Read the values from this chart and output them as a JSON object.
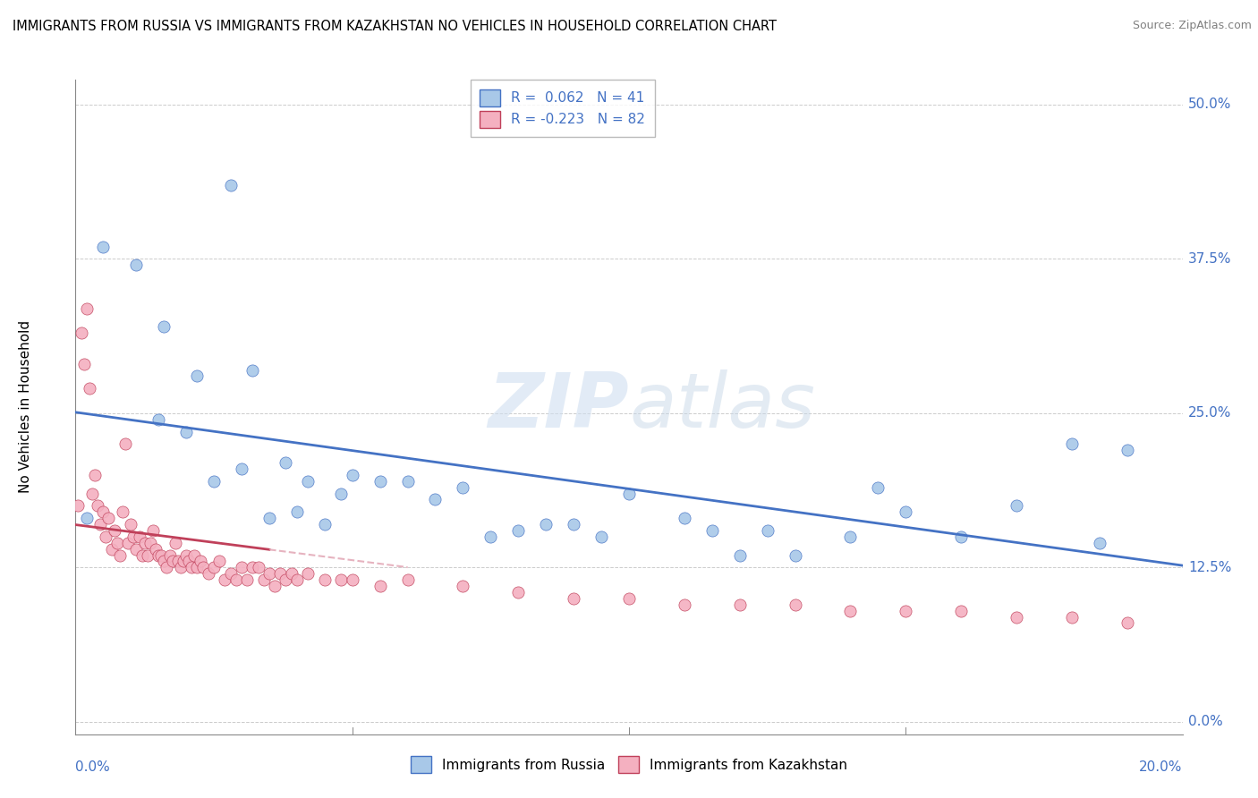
{
  "title": "IMMIGRANTS FROM RUSSIA VS IMMIGRANTS FROM KAZAKHSTAN NO VEHICLES IN HOUSEHOLD CORRELATION CHART",
  "source": "Source: ZipAtlas.com",
  "ylabel": "No Vehicles in Household",
  "ytick_vals": [
    0.0,
    12.5,
    25.0,
    37.5,
    50.0
  ],
  "xlim": [
    0.0,
    20.0
  ],
  "ylim": [
    -1.0,
    52.0
  ],
  "legend_r_russia": "0.062",
  "legend_n_russia": "41",
  "legend_r_kazakhstan": "-0.223",
  "legend_n_kazakhstan": "82",
  "color_russia": "#a8c8e8",
  "color_kazakhstan": "#f4b0c0",
  "line_russia": "#4472c4",
  "line_kazakhstan": "#c0405a",
  "background_color": "#ffffff",
  "russia_x": [
    0.2,
    0.5,
    1.1,
    1.5,
    1.6,
    2.0,
    2.2,
    2.5,
    2.8,
    3.0,
    3.2,
    3.5,
    3.8,
    4.0,
    4.2,
    4.5,
    4.8,
    5.0,
    5.5,
    6.0,
    6.5,
    7.0,
    7.5,
    8.0,
    8.5,
    9.0,
    9.5,
    10.0,
    11.0,
    11.5,
    12.0,
    12.5,
    13.0,
    14.0,
    14.5,
    15.0,
    16.0,
    17.0,
    18.0,
    18.5,
    19.0
  ],
  "russia_y": [
    16.5,
    38.5,
    37.0,
    24.5,
    32.0,
    23.5,
    28.0,
    19.5,
    43.5,
    20.5,
    28.5,
    16.5,
    21.0,
    17.0,
    19.5,
    16.0,
    18.5,
    20.0,
    19.5,
    19.5,
    18.0,
    19.0,
    15.0,
    15.5,
    16.0,
    16.0,
    15.0,
    18.5,
    16.5,
    15.5,
    13.5,
    15.5,
    13.5,
    15.0,
    19.0,
    17.0,
    15.0,
    17.5,
    22.5,
    14.5,
    22.0
  ],
  "kazakhstan_x": [
    0.05,
    0.1,
    0.15,
    0.2,
    0.25,
    0.3,
    0.35,
    0.4,
    0.45,
    0.5,
    0.55,
    0.6,
    0.65,
    0.7,
    0.75,
    0.8,
    0.85,
    0.9,
    0.95,
    1.0,
    1.05,
    1.1,
    1.15,
    1.2,
    1.25,
    1.3,
    1.35,
    1.4,
    1.45,
    1.5,
    1.55,
    1.6,
    1.65,
    1.7,
    1.75,
    1.8,
    1.85,
    1.9,
    1.95,
    2.0,
    2.05,
    2.1,
    2.15,
    2.2,
    2.25,
    2.3,
    2.4,
    2.5,
    2.6,
    2.7,
    2.8,
    2.9,
    3.0,
    3.1,
    3.2,
    3.3,
    3.4,
    3.5,
    3.6,
    3.7,
    3.8,
    3.9,
    4.0,
    4.2,
    4.5,
    4.8,
    5.0,
    5.5,
    6.0,
    7.0,
    8.0,
    9.0,
    10.0,
    11.0,
    12.0,
    13.0,
    14.0,
    15.0,
    16.0,
    17.0,
    18.0,
    19.0
  ],
  "kazakhstan_y": [
    17.5,
    31.5,
    29.0,
    33.5,
    27.0,
    18.5,
    20.0,
    17.5,
    16.0,
    17.0,
    15.0,
    16.5,
    14.0,
    15.5,
    14.5,
    13.5,
    17.0,
    22.5,
    14.5,
    16.0,
    15.0,
    14.0,
    15.0,
    13.5,
    14.5,
    13.5,
    14.5,
    15.5,
    14.0,
    13.5,
    13.5,
    13.0,
    12.5,
    13.5,
    13.0,
    14.5,
    13.0,
    12.5,
    13.0,
    13.5,
    13.0,
    12.5,
    13.5,
    12.5,
    13.0,
    12.5,
    12.0,
    12.5,
    13.0,
    11.5,
    12.0,
    11.5,
    12.5,
    11.5,
    12.5,
    12.5,
    11.5,
    12.0,
    11.0,
    12.0,
    11.5,
    12.0,
    11.5,
    12.0,
    11.5,
    11.5,
    11.5,
    11.0,
    11.5,
    11.0,
    10.5,
    10.0,
    10.0,
    9.5,
    9.5,
    9.5,
    9.0,
    9.0,
    9.0,
    8.5,
    8.5,
    8.0
  ],
  "kaz_reg_x_end": 3.5,
  "kaz_reg_line_color": "#c0405a",
  "kaz_reg_dashed_color": "#e0a0b0"
}
